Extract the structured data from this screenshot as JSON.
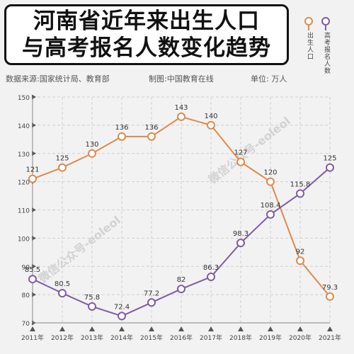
{
  "header": {
    "title_line1": "河南省近年来出生人口",
    "title_line2": "与高考报名人数变化趋势"
  },
  "legend": {
    "items": [
      {
        "label": "出生人口",
        "color": "#e08a4a"
      },
      {
        "label": "高考报名人数",
        "color": "#7f5ca8"
      }
    ]
  },
  "meta": {
    "source": "数据来源:国家统计局、教育部",
    "made_by": "制图:中国教育在线",
    "unit": "单位: 万人"
  },
  "watermark": {
    "text": "微信公众号-eoleol"
  },
  "chart_data": {
    "type": "line",
    "categories": [
      "2011年",
      "2012年",
      "2013年",
      "2014年",
      "2015年",
      "2016年",
      "2017年",
      "2018年",
      "2019年",
      "2020年",
      "2021年"
    ],
    "ylim": [
      70,
      150
    ],
    "yticks": [
      70,
      80,
      90,
      100,
      110,
      120,
      130,
      140,
      150
    ],
    "grid": true,
    "series": [
      {
        "name": "出生人口",
        "color": "#e08a4a",
        "values": [
          121,
          125,
          130,
          136,
          136,
          143,
          140,
          127,
          120,
          92,
          79.3
        ],
        "labels": [
          "121",
          "125",
          "130",
          "136",
          "136",
          "143",
          "140",
          "127",
          "120",
          "92",
          "79.3"
        ]
      },
      {
        "name": "高考报名人数",
        "color": "#7f5ca8",
        "values": [
          85.5,
          80.5,
          75.8,
          72.4,
          77.2,
          82,
          86.3,
          98.3,
          108.4,
          115.8,
          125
        ],
        "labels": [
          "85.5",
          "80.5",
          "75.8",
          "72.4",
          "77.2",
          "82",
          "86.3",
          "98.3",
          "108.4",
          "115.8",
          "125"
        ]
      }
    ]
  }
}
